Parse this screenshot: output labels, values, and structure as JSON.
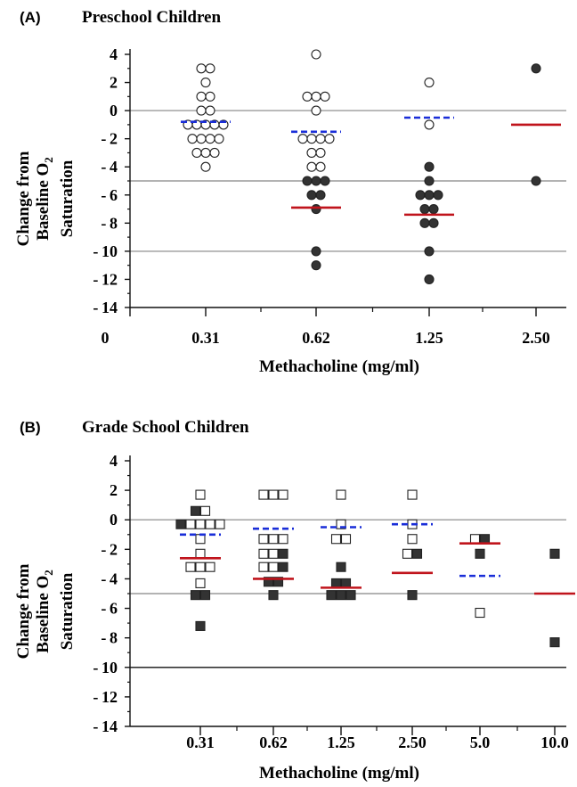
{
  "chart_data": [
    {
      "type": "scatter",
      "panel_label": "(A)",
      "title": "Preschool Children",
      "xlabel": "Methacholine (mg/ml)",
      "ylabel_lines": [
        "Change from",
        "Baseline O",
        "Saturation"
      ],
      "ylabel_subscript": "2",
      "x_origin_label": "0",
      "categories": [
        "0.31",
        "0.62",
        "1.25",
        "2.50"
      ],
      "ylim": [
        -14,
        4
      ],
      "yticks": [
        "4",
        "2",
        "0",
        "-2",
        "-4",
        "-6",
        "-8",
        "-10",
        "-12",
        "-14"
      ],
      "reference_lines": [
        0,
        -5,
        -10
      ],
      "marker": "circle",
      "points": [
        {
          "x": "0.31",
          "y": 3,
          "filled": false
        },
        {
          "x": "0.31",
          "y": 3,
          "filled": false
        },
        {
          "x": "0.31",
          "y": 2,
          "filled": false
        },
        {
          "x": "0.31",
          "y": 1,
          "filled": false
        },
        {
          "x": "0.31",
          "y": 1,
          "filled": false
        },
        {
          "x": "0.31",
          "y": 0,
          "filled": false
        },
        {
          "x": "0.31",
          "y": 0,
          "filled": false
        },
        {
          "x": "0.31",
          "y": -1,
          "filled": false
        },
        {
          "x": "0.31",
          "y": -1,
          "filled": false
        },
        {
          "x": "0.31",
          "y": -1,
          "filled": false
        },
        {
          "x": "0.31",
          "y": -1,
          "filled": false
        },
        {
          "x": "0.31",
          "y": -1,
          "filled": false
        },
        {
          "x": "0.31",
          "y": -2,
          "filled": false
        },
        {
          "x": "0.31",
          "y": -2,
          "filled": false
        },
        {
          "x": "0.31",
          "y": -2,
          "filled": false
        },
        {
          "x": "0.31",
          "y": -2,
          "filled": false
        },
        {
          "x": "0.31",
          "y": -3,
          "filled": false
        },
        {
          "x": "0.31",
          "y": -3,
          "filled": false
        },
        {
          "x": "0.31",
          "y": -3,
          "filled": false
        },
        {
          "x": "0.31",
          "y": -4,
          "filled": false
        },
        {
          "x": "0.62",
          "y": 4,
          "filled": false
        },
        {
          "x": "0.62",
          "y": 1,
          "filled": false
        },
        {
          "x": "0.62",
          "y": 1,
          "filled": false
        },
        {
          "x": "0.62",
          "y": 1,
          "filled": false
        },
        {
          "x": "0.62",
          "y": 0,
          "filled": false
        },
        {
          "x": "0.62",
          "y": -2,
          "filled": false
        },
        {
          "x": "0.62",
          "y": -2,
          "filled": false
        },
        {
          "x": "0.62",
          "y": -2,
          "filled": false
        },
        {
          "x": "0.62",
          "y": -2,
          "filled": false
        },
        {
          "x": "0.62",
          "y": -3,
          "filled": false
        },
        {
          "x": "0.62",
          "y": -3,
          "filled": false
        },
        {
          "x": "0.62",
          "y": -4,
          "filled": false
        },
        {
          "x": "0.62",
          "y": -4,
          "filled": false
        },
        {
          "x": "0.62",
          "y": -5,
          "filled": true
        },
        {
          "x": "0.62",
          "y": -5,
          "filled": true
        },
        {
          "x": "0.62",
          "y": -5,
          "filled": true
        },
        {
          "x": "0.62",
          "y": -6,
          "filled": true
        },
        {
          "x": "0.62",
          "y": -6,
          "filled": true
        },
        {
          "x": "0.62",
          "y": -7,
          "filled": true
        },
        {
          "x": "0.62",
          "y": -10,
          "filled": true
        },
        {
          "x": "0.62",
          "y": -11,
          "filled": true
        },
        {
          "x": "1.25",
          "y": 2,
          "filled": false
        },
        {
          "x": "1.25",
          "y": -1,
          "filled": false
        },
        {
          "x": "1.25",
          "y": -4,
          "filled": true
        },
        {
          "x": "1.25",
          "y": -5,
          "filled": true
        },
        {
          "x": "1.25",
          "y": -6,
          "filled": true
        },
        {
          "x": "1.25",
          "y": -6,
          "filled": true
        },
        {
          "x": "1.25",
          "y": -6,
          "filled": true
        },
        {
          "x": "1.25",
          "y": -7,
          "filled": true
        },
        {
          "x": "1.25",
          "y": -7,
          "filled": true
        },
        {
          "x": "1.25",
          "y": -8,
          "filled": true
        },
        {
          "x": "1.25",
          "y": -8,
          "filled": true
        },
        {
          "x": "1.25",
          "y": -10,
          "filled": true
        },
        {
          "x": "1.25",
          "y": -12,
          "filled": true
        },
        {
          "x": "2.50",
          "y": 3,
          "filled": true
        },
        {
          "x": "2.50",
          "y": -5,
          "filled": true
        }
      ],
      "mean_lines_red": [
        {
          "x": "0.62",
          "y": -6.9
        },
        {
          "x": "1.25",
          "y": -7.4
        },
        {
          "x": "2.50",
          "y": -1.0
        }
      ],
      "mean_lines_blue_dashed": [
        {
          "x": "0.31",
          "y": -0.8
        },
        {
          "x": "0.62",
          "y": -1.5
        },
        {
          "x": "1.25",
          "y": -0.5
        }
      ],
      "colors": {
        "red": "#c0141c",
        "blue": "#1a2ed8",
        "ref": "#9a9a9a",
        "marker": "#333333"
      }
    },
    {
      "type": "scatter",
      "panel_label": "(B)",
      "title": "Grade School Children",
      "xlabel": "Methacholine (mg/ml)",
      "ylabel_lines": [
        "Change from",
        "Baseline O",
        "Saturation"
      ],
      "ylabel_subscript": "2",
      "categories": [
        "0.31",
        "0.62",
        "1.25",
        "2.50",
        "5.0",
        "10.0"
      ],
      "ylim": [
        -14,
        4
      ],
      "yticks": [
        "4",
        "2",
        "0",
        "-2",
        "-4",
        "-6",
        "-8",
        "-10",
        "-12",
        "-14"
      ],
      "reference_lines": [
        0,
        -5
      ],
      "reference_line_dark": -10,
      "marker": "square",
      "points": [
        {
          "x": "0.31",
          "y": 1.7,
          "filled": false
        },
        {
          "x": "0.31",
          "y": 0.6,
          "filled": true
        },
        {
          "x": "0.31",
          "y": 0.6,
          "filled": false
        },
        {
          "x": "0.31",
          "y": -0.3,
          "filled": true
        },
        {
          "x": "0.31",
          "y": -0.3,
          "filled": false
        },
        {
          "x": "0.31",
          "y": -0.3,
          "filled": false
        },
        {
          "x": "0.31",
          "y": -0.3,
          "filled": false
        },
        {
          "x": "0.31",
          "y": -0.3,
          "filled": false
        },
        {
          "x": "0.31",
          "y": -1.3,
          "filled": false
        },
        {
          "x": "0.31",
          "y": -2.3,
          "filled": false
        },
        {
          "x": "0.31",
          "y": -3.2,
          "filled": false
        },
        {
          "x": "0.31",
          "y": -3.2,
          "filled": false
        },
        {
          "x": "0.31",
          "y": -3.2,
          "filled": false
        },
        {
          "x": "0.31",
          "y": -4.3,
          "filled": false
        },
        {
          "x": "0.31",
          "y": -5.1,
          "filled": true
        },
        {
          "x": "0.31",
          "y": -5.1,
          "filled": true
        },
        {
          "x": "0.31",
          "y": -7.2,
          "filled": true
        },
        {
          "x": "0.62",
          "y": 1.7,
          "filled": false
        },
        {
          "x": "0.62",
          "y": 1.7,
          "filled": false
        },
        {
          "x": "0.62",
          "y": 1.7,
          "filled": false
        },
        {
          "x": "0.62",
          "y": -1.3,
          "filled": false
        },
        {
          "x": "0.62",
          "y": -1.3,
          "filled": false
        },
        {
          "x": "0.62",
          "y": -1.3,
          "filled": false
        },
        {
          "x": "0.62",
          "y": -2.3,
          "filled": false
        },
        {
          "x": "0.62",
          "y": -2.3,
          "filled": false
        },
        {
          "x": "0.62",
          "y": -2.3,
          "filled": true
        },
        {
          "x": "0.62",
          "y": -3.2,
          "filled": false
        },
        {
          "x": "0.62",
          "y": -3.2,
          "filled": false
        },
        {
          "x": "0.62",
          "y": -3.2,
          "filled": true
        },
        {
          "x": "0.62",
          "y": -4.2,
          "filled": true
        },
        {
          "x": "0.62",
          "y": -4.2,
          "filled": true
        },
        {
          "x": "0.62",
          "y": -5.1,
          "filled": true
        },
        {
          "x": "1.25",
          "y": 1.7,
          "filled": false
        },
        {
          "x": "1.25",
          "y": -0.3,
          "filled": false
        },
        {
          "x": "1.25",
          "y": -1.3,
          "filled": false
        },
        {
          "x": "1.25",
          "y": -1.3,
          "filled": false
        },
        {
          "x": "1.25",
          "y": -3.2,
          "filled": true
        },
        {
          "x": "1.25",
          "y": -4.3,
          "filled": true
        },
        {
          "x": "1.25",
          "y": -4.3,
          "filled": true
        },
        {
          "x": "1.25",
          "y": -5.1,
          "filled": true
        },
        {
          "x": "1.25",
          "y": -5.1,
          "filled": true
        },
        {
          "x": "1.25",
          "y": -5.1,
          "filled": true
        },
        {
          "x": "2.50",
          "y": 1.7,
          "filled": false
        },
        {
          "x": "2.50",
          "y": -0.3,
          "filled": false
        },
        {
          "x": "2.50",
          "y": -1.3,
          "filled": false
        },
        {
          "x": "2.50",
          "y": -2.3,
          "filled": false
        },
        {
          "x": "2.50",
          "y": -2.3,
          "filled": true
        },
        {
          "x": "2.50",
          "y": -5.1,
          "filled": true
        },
        {
          "x": "5.0",
          "y": -1.3,
          "filled": false
        },
        {
          "x": "5.0",
          "y": -1.3,
          "filled": true
        },
        {
          "x": "5.0",
          "y": -2.3,
          "filled": true
        },
        {
          "x": "5.0",
          "y": -6.3,
          "filled": false
        },
        {
          "x": "10.0",
          "y": -2.3,
          "filled": true
        },
        {
          "x": "10.0",
          "y": -8.3,
          "filled": true
        }
      ],
      "mean_lines_red": [
        {
          "x": "0.31",
          "y": -2.6
        },
        {
          "x": "0.62",
          "y": -4.0
        },
        {
          "x": "1.25",
          "y": -4.6
        },
        {
          "x": "2.50",
          "y": -3.6
        },
        {
          "x": "5.0",
          "y": -1.6
        },
        {
          "x": "10.0",
          "y": -5.0
        }
      ],
      "mean_lines_blue_dashed": [
        {
          "x": "0.31",
          "y": -1.0
        },
        {
          "x": "0.62",
          "y": -0.6
        },
        {
          "x": "1.25",
          "y": -0.5
        },
        {
          "x": "2.50",
          "y": -0.3
        },
        {
          "x": "5.0",
          "y": -3.8
        }
      ],
      "colors": {
        "red": "#c0141c",
        "blue": "#1a2ed8",
        "ref": "#9a9a9a",
        "marker": "#333333"
      }
    }
  ]
}
